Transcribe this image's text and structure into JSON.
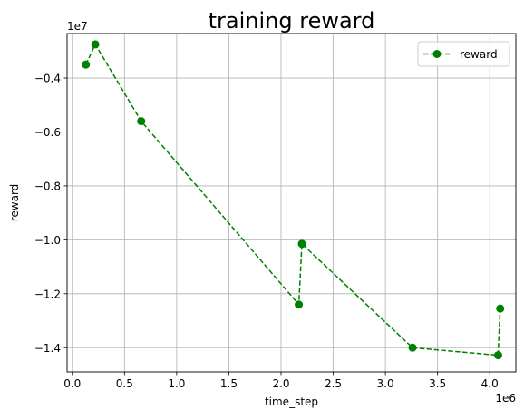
{
  "chart_data": {
    "type": "line",
    "title": "training reward",
    "xlabel": "time_step",
    "ylabel": "reward",
    "x_offset_label": "1e6",
    "y_offset_label": "1e7",
    "xlim": [
      -0.05,
      4.25
    ],
    "ylim": [
      -1.49,
      -0.235
    ],
    "xticks": [
      0.0,
      0.5,
      1.0,
      1.5,
      2.0,
      2.5,
      3.0,
      3.5,
      4.0
    ],
    "xtick_labels": [
      "0.0",
      "0.5",
      "1.0",
      "1.5",
      "2.0",
      "2.5",
      "3.0",
      "3.5",
      "4.0"
    ],
    "yticks": [
      -0.4,
      -0.6,
      -0.8,
      -1.0,
      -1.2,
      -1.4
    ],
    "ytick_labels": [
      "−0.4",
      "−0.6",
      "−0.8",
      "−1.0",
      "−1.2",
      "−1.4"
    ],
    "grid": true,
    "legend_position": "top-right",
    "series": [
      {
        "name": "reward",
        "color": "#008000",
        "line_style": "dashed",
        "marker": "circle",
        "x": [
          0.13,
          0.22,
          0.66,
          2.17,
          2.2,
          3.26,
          4.08,
          4.1
        ],
        "y": [
          -0.35,
          -0.275,
          -0.56,
          -1.24,
          -1.015,
          -1.4,
          -1.428,
          -1.255
        ]
      }
    ]
  }
}
